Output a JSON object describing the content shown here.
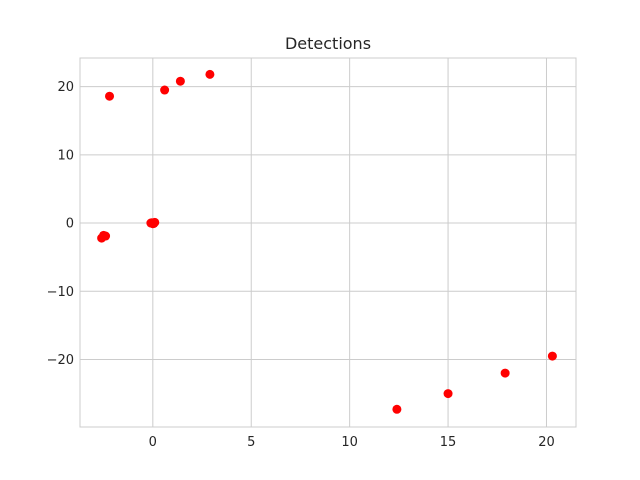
{
  "chart_data": {
    "type": "scatter",
    "title": "Detections",
    "xlabel": "",
    "ylabel": "",
    "xlim": [
      -3.7,
      21.5
    ],
    "ylim": [
      -29.9,
      24.2
    ],
    "xticks": [
      0,
      5,
      10,
      15,
      20
    ],
    "yticks": [
      -20,
      -10,
      0,
      10,
      20
    ],
    "xtick_labels": [
      "0",
      "5",
      "10",
      "15",
      "20"
    ],
    "ytick_labels": [
      "−20",
      "−10",
      "0",
      "10",
      "20"
    ],
    "grid": true,
    "marker_color": "#ff0000",
    "points": [
      {
        "x": -2.2,
        "y": 18.6
      },
      {
        "x": 0.6,
        "y": 19.5
      },
      {
        "x": 1.4,
        "y": 20.8
      },
      {
        "x": 2.9,
        "y": 21.8
      },
      {
        "x": -0.1,
        "y": 0.0
      },
      {
        "x": 0.0,
        "y": -0.1
      },
      {
        "x": 0.1,
        "y": 0.1
      },
      {
        "x": 0.05,
        "y": -0.05
      },
      {
        "x": -0.05,
        "y": 0.05
      },
      {
        "x": -2.5,
        "y": -1.8
      },
      {
        "x": -2.6,
        "y": -2.2
      },
      {
        "x": -2.4,
        "y": -1.9
      },
      {
        "x": 12.4,
        "y": -27.3
      },
      {
        "x": 15.0,
        "y": -25.0
      },
      {
        "x": 17.9,
        "y": -22.0
      },
      {
        "x": 20.3,
        "y": -19.5
      }
    ]
  }
}
